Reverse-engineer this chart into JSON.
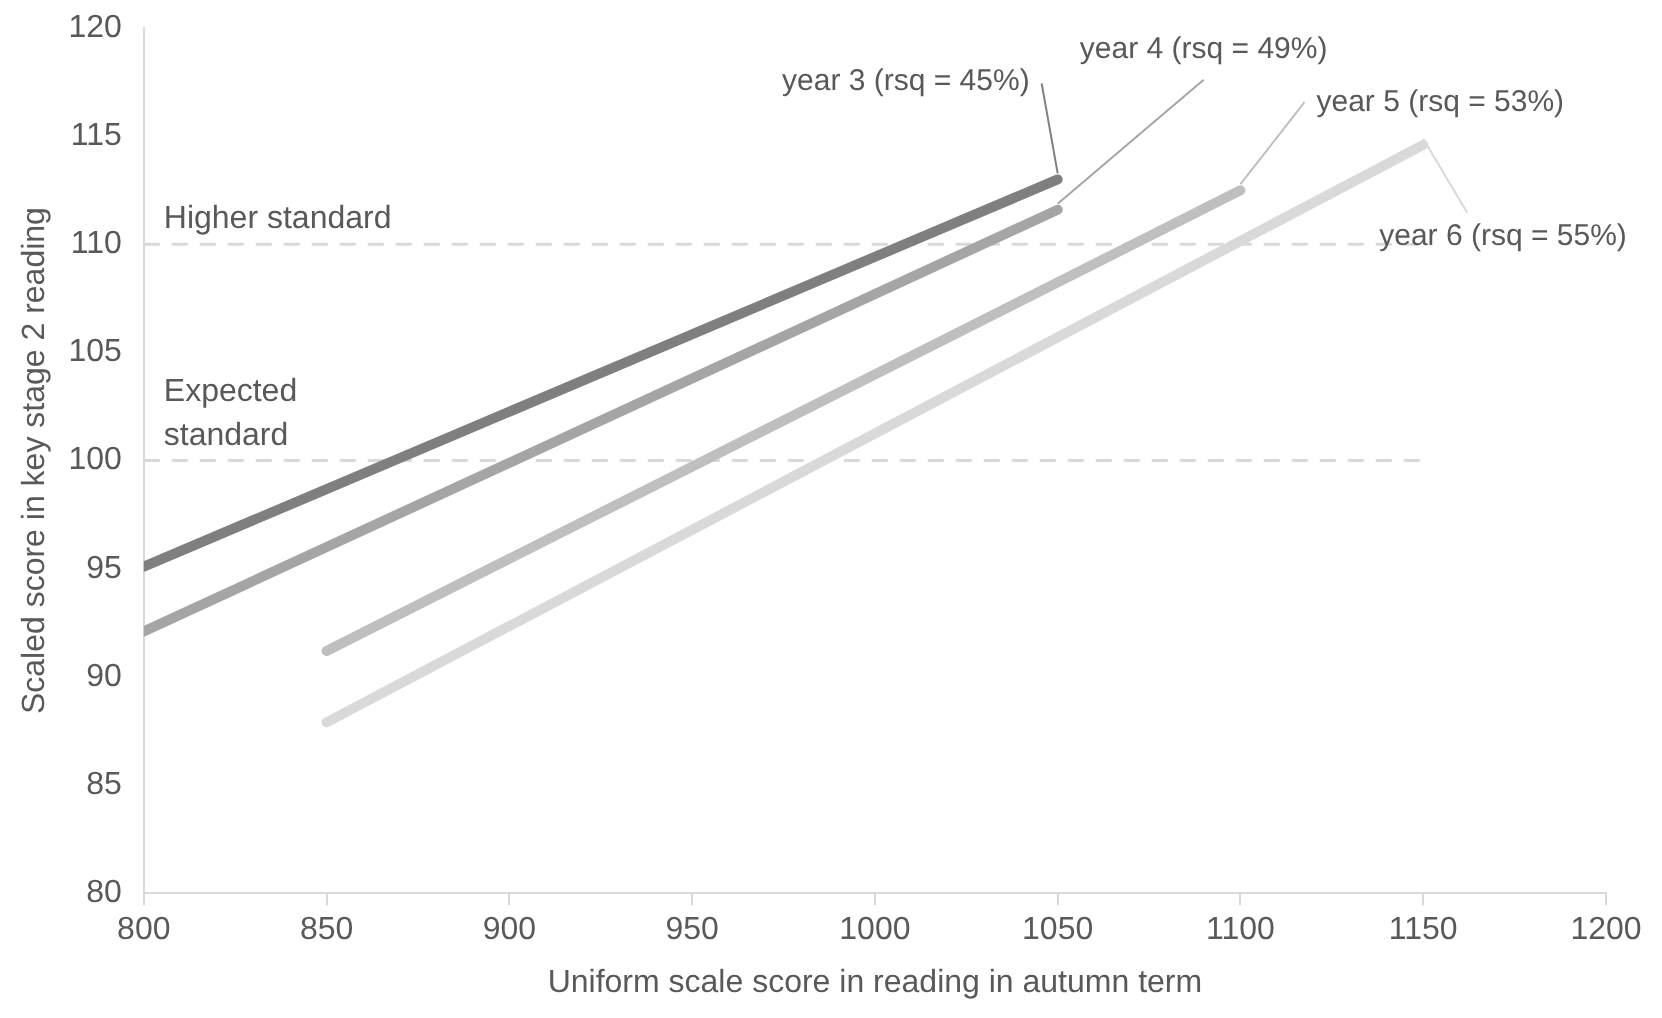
{
  "chart_data": {
    "type": "line",
    "xlabel": "Uniform scale score in reading in autumn term",
    "ylabel": "Scaled score in key stage 2 reading",
    "xlim": [
      800,
      1200
    ],
    "xticks": [
      800,
      850,
      900,
      950,
      1000,
      1050,
      1100,
      1150,
      1200
    ],
    "ylim": [
      80,
      120
    ],
    "yticks": [
      80,
      85,
      90,
      95,
      100,
      105,
      110,
      115,
      120
    ],
    "grid": false,
    "legend": false,
    "marker": "none",
    "line_style": "solid",
    "series": [
      {
        "name": "year 3 (rsq = 45%)",
        "color": "#7f7f7f",
        "x": [
          800,
          1050
        ],
        "values": [
          95.1,
          113.0
        ]
      },
      {
        "name": "year 4 (rsq = 49%)",
        "color": "#a5a5a5",
        "x": [
          800,
          1050
        ],
        "values": [
          92.1,
          111.6
        ]
      },
      {
        "name": "year 5 (rsq = 53%)",
        "color": "#bfbfbf",
        "x": [
          850,
          1100
        ],
        "values": [
          91.2,
          112.5
        ]
      },
      {
        "name": "year 6 (rsq = 55%)",
        "color": "#d9d9d9",
        "x": [
          850,
          1150
        ],
        "values": [
          87.9,
          114.6
        ]
      }
    ],
    "ref_lines": [
      {
        "axis": "y",
        "value": 110,
        "label": "Higher standard",
        "color": "#d9d9d9",
        "line_style": "dashed"
      },
      {
        "axis": "y",
        "value": 100,
        "label": "Expected standard",
        "color": "#d9d9d9",
        "line_style": "dashed"
      }
    ]
  }
}
